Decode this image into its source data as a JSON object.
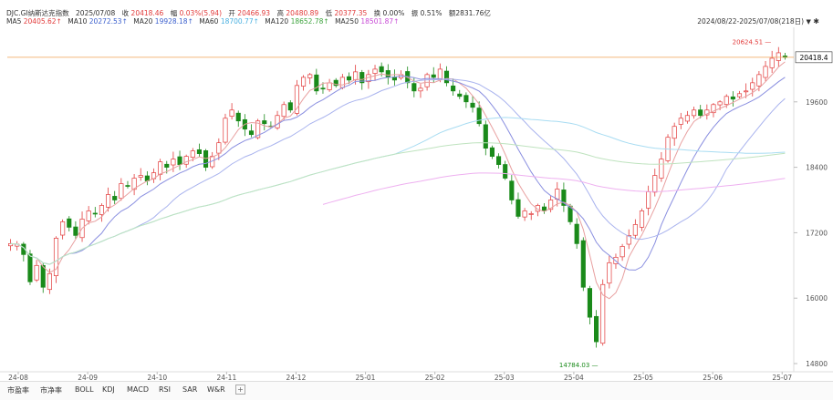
{
  "header": {
    "name": "DJC.GI纳斯达克指数",
    "date": "2025/07/08",
    "close_label": "收",
    "close": "20418.46",
    "change_label": "幅",
    "change": "0.03%(5.94)",
    "open_label": "开",
    "open": "20466.93",
    "high_label": "高",
    "high": "20480.89",
    "low_label": "低",
    "low": "20377.35",
    "turnover_label": "换",
    "turnover": "0.00%",
    "amp_label": "振",
    "amp": "0.51%",
    "amount_label": "额",
    "amount": "2831.76亿"
  },
  "ma_legend": [
    {
      "label": "MA5",
      "value": "20405.62↑",
      "color": "#e23b3b"
    },
    {
      "label": "MA10",
      "value": "20272.53↑",
      "color": "#3a5fcd"
    },
    {
      "label": "MA20",
      "value": "19928.18↑",
      "color": "#3a5fcd"
    },
    {
      "label": "MA60",
      "value": "18700.77↑",
      "color": "#6ac3e8"
    },
    {
      "label": "MA120",
      "value": "18652.78↑",
      "color": "#5db85d"
    },
    {
      "label": "MA250",
      "value": "18501.87↑",
      "color": "#c84bd6"
    }
  ],
  "range_text": "2024/08/22-2025/07/08(218日)",
  "colors": {
    "up": "#e23b3b",
    "down": "#1a8a1a",
    "ma5": "#e8a0a0",
    "ma10": "#8a8fe0",
    "ma20": "#a9b3ee",
    "ma60": "#a8dcf2",
    "ma120": "#bfe3bf",
    "ma250": "#eeb0f0",
    "last_line": "#f0a050"
  },
  "chart_data": {
    "type": "candlestick",
    "x_ticks": [
      "24-08",
      "24-09",
      "24-10",
      "24-11",
      "24-12",
      "25-01",
      "25-02",
      "25-03",
      "25-04",
      "25-05",
      "25-06",
      "25-07"
    ],
    "y_ticks": [
      14800,
      16000,
      17200,
      18400,
      19600
    ],
    "ylim": [
      14650,
      20900
    ],
    "last_price_label": "20418.4",
    "max_label": "20624.51",
    "min_label": "14784.03",
    "closes": [
      17000,
      16990,
      16800,
      16300,
      16600,
      16200,
      16450,
      17100,
      17400,
      17300,
      17150,
      17450,
      17600,
      17550,
      17700,
      17900,
      17800,
      18100,
      18050,
      18200,
      18250,
      18150,
      18300,
      18500,
      18400,
      18550,
      18450,
      18600,
      18700,
      18650,
      18400,
      18600,
      18850,
      19300,
      19450,
      19250,
      19100,
      19000,
      19250,
      19200,
      19150,
      19350,
      19550,
      19450,
      19900,
      20050,
      20100,
      19800,
      19850,
      19950,
      19900,
      20050,
      20000,
      20150,
      19950,
      20100,
      20200,
      20150,
      20050,
      20000,
      20100,
      19950,
      19800,
      19850,
      20100,
      20050,
      20200,
      19950,
      19800,
      19700,
      19600,
      19500,
      19200,
      18750,
      18600,
      18450,
      18200,
      17800,
      17500,
      17600,
      17550,
      17700,
      17600,
      17800,
      18000,
      17700,
      17400,
      17000,
      16200,
      15650,
      15200,
      16250,
      16650,
      16750,
      16950,
      17150,
      17350,
      17600,
      17950,
      18250,
      18550,
      18950,
      19150,
      19300,
      19350,
      19450,
      19350,
      19450,
      19550,
      19600,
      19700,
      19650,
      19750,
      19800,
      19950,
      20100,
      20250,
      20400,
      20500,
      20418
    ]
  },
  "bottom_tabs": [
    "市盈率",
    "市净率",
    "BOLL",
    "KDJ",
    "MACD",
    "RSI",
    "SAR",
    "W&R"
  ],
  "bottom_plus": "+"
}
